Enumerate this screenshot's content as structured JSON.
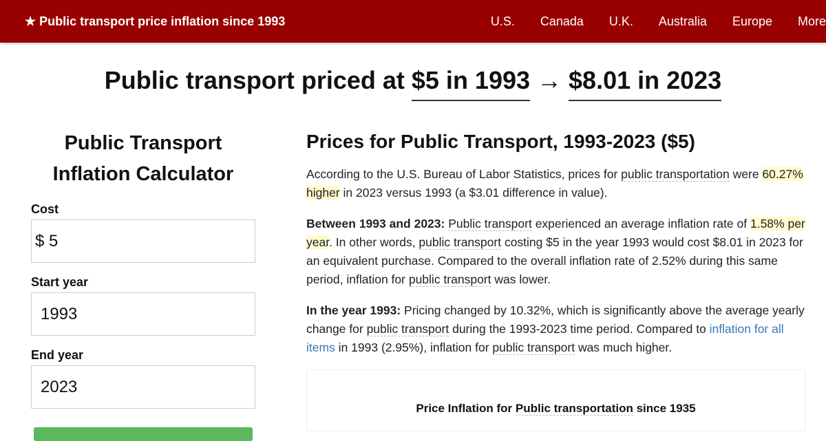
{
  "nav": {
    "brand": "★ Public transport price inflation since 1993",
    "links": [
      "U.S.",
      "Canada",
      "U.K.",
      "Australia",
      "Europe",
      "More"
    ]
  },
  "headline": {
    "prefix": "Public transport priced at ",
    "from": "$5 in 1993",
    "arrow": " → ",
    "to": "$8.01 in 2023"
  },
  "calculator": {
    "title": "Public Transport Inflation Calculator",
    "cost_label": "Cost",
    "cost_currency": "$",
    "cost_value": "5",
    "start_label": "Start year",
    "start_value": "1993",
    "end_label": "End year",
    "end_value": "2023",
    "button_color": "#5cb85c"
  },
  "main": {
    "title": "Prices for Public Transport, 1993-2023 ($5)",
    "p1": {
      "a": "According to the U.S. Bureau of Labor Statistics, prices for ",
      "b": "public transportation",
      "c": " were ",
      "d": "60.27% higher",
      "e": " in 2023 versus 1993 (a $3.01 difference in value)."
    },
    "p2": {
      "bold": "Between 1993 and 2023:",
      "a": " ",
      "b": "Public transport",
      "c": " experienced an average inflation rate of ",
      "d": "1.58% per year",
      "e": ". In other words, ",
      "f": "public transport",
      "g": " costing $5 in the year 1993 would cost $8.01 in 2023 for an equivalent purchase. Compared to the overall inflation rate of 2.52% during this same period, inflation for ",
      "h": "public transport",
      "i": " was lower."
    },
    "p3": {
      "bold": "In the year 1993:",
      "a": " Pricing changed by 10.32%, which is significantly above the average yearly change for ",
      "b": "public transport",
      "c": " during the 1993-2023 time period. Compared to ",
      "link": "inflation for all items",
      "d": " in 1993 (2.95%), inflation for ",
      "e": "public transport",
      "f": " was much higher."
    },
    "chart_title_a": "Price Inflation for ",
    "chart_title_b": "Public transportation",
    "chart_title_c": " since 1935"
  }
}
